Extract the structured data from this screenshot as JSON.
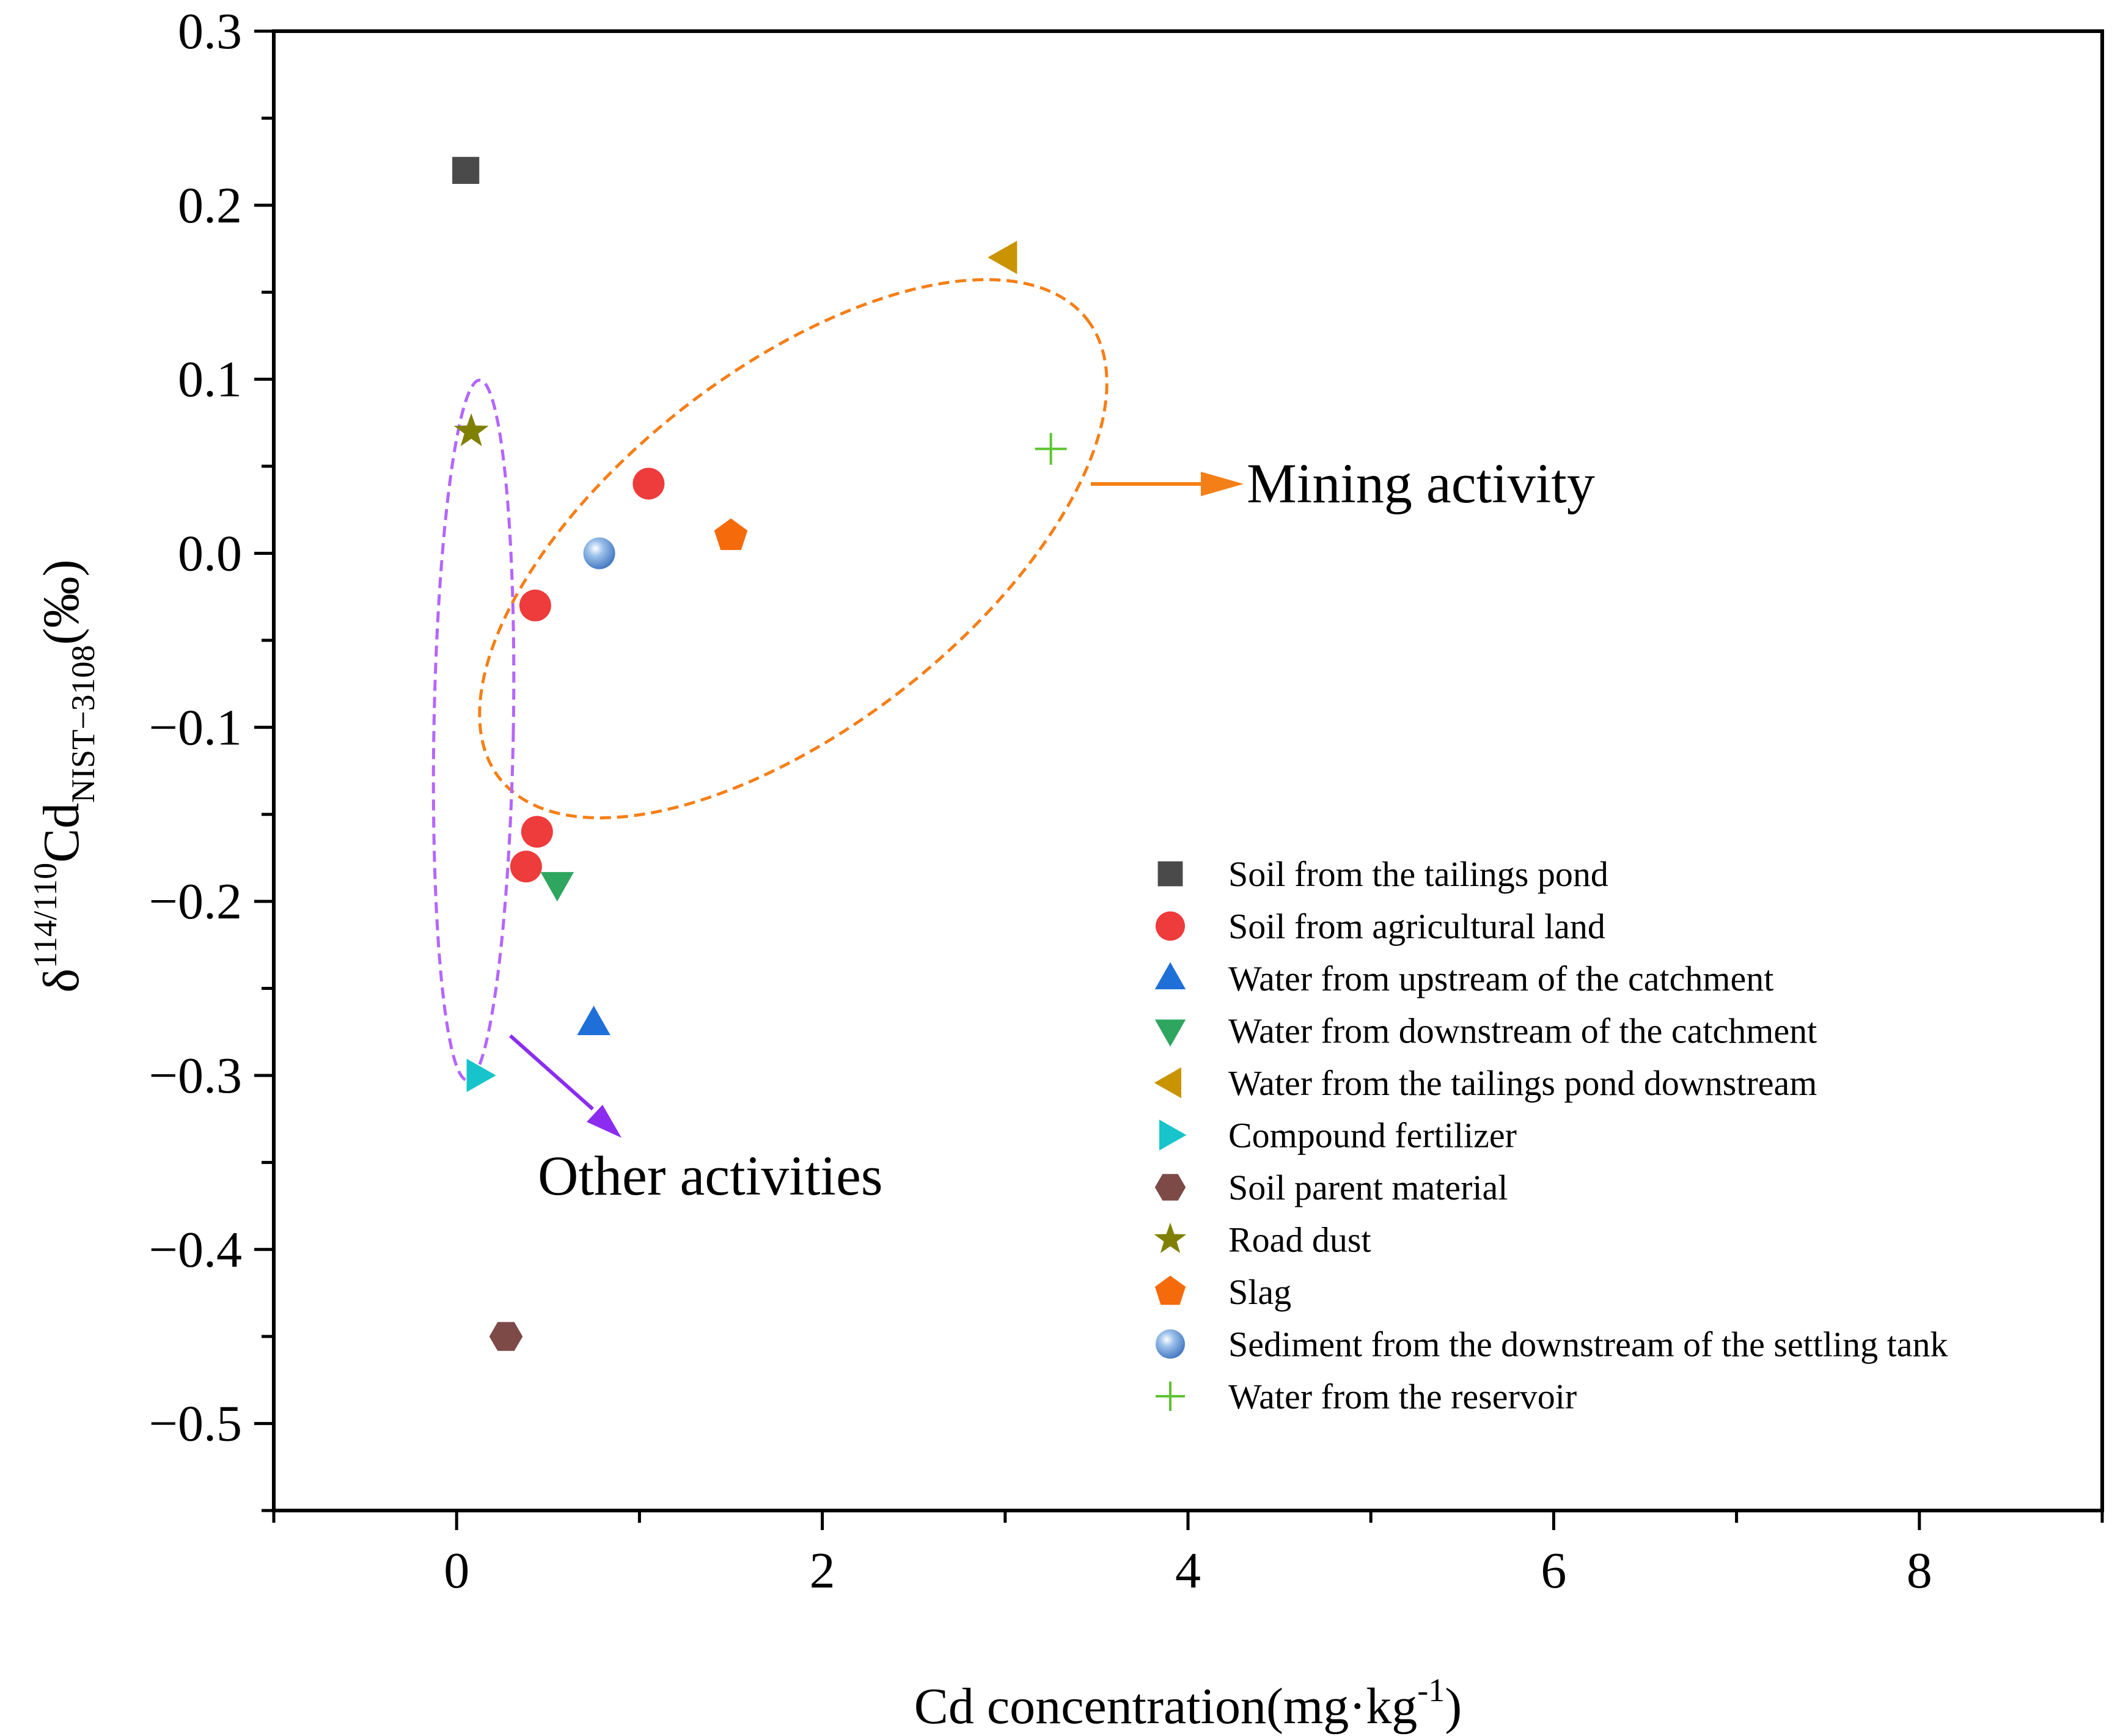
{
  "chart_data": {
    "type": "scatter",
    "title": "",
    "xlabel": {
      "prefix": "Cd concentration(mg·kg",
      "sup": "-1",
      "suffix": ")"
    },
    "ylabel": {
      "delta": "δ",
      "sup": "114/110",
      "element": "Cd",
      "sub": "NIST−3108",
      "suffix": "(‰)"
    },
    "xlim": [
      -1,
      9
    ],
    "ylim": [
      -0.55,
      0.3
    ],
    "x_ticks": [
      0,
      2,
      4,
      6,
      8
    ],
    "x_tick_labels": [
      "0",
      "2",
      "4",
      "6",
      "8"
    ],
    "y_ticks": [
      0.3,
      0.2,
      0.1,
      0.0,
      -0.1,
      -0.2,
      -0.3,
      -0.4,
      -0.5
    ],
    "y_tick_labels": [
      "0.3",
      "0.2",
      "0.1",
      "0.0",
      "−0.1",
      "−0.2",
      "−0.3",
      "−0.4",
      "−0.5"
    ],
    "grid": false,
    "legend_position": "right",
    "series": [
      {
        "name": "Soil from the tailings pond",
        "marker": "square",
        "color": "#4a4a4a",
        "points": [
          [
            0.05,
            0.22
          ]
        ]
      },
      {
        "name": "Soil from agricultural land",
        "marker": "circle",
        "color": "#ee3b3b",
        "points": [
          [
            1.05,
            0.04
          ],
          [
            0.43,
            -0.03
          ],
          [
            0.44,
            -0.16
          ],
          [
            0.38,
            -0.18
          ]
        ]
      },
      {
        "name": "Water from upstream of the catchment",
        "marker": "triangle-up",
        "color": "#1f6fd8",
        "points": [
          [
            0.75,
            -0.27
          ]
        ]
      },
      {
        "name": "Water from downstream of the catchment",
        "marker": "triangle-down",
        "color": "#2ea660",
        "points": [
          [
            0.55,
            -0.19
          ]
        ]
      },
      {
        "name": "Water from the tailings pond downstream",
        "marker": "triangle-left",
        "color": "#c99400",
        "points": [
          [
            3.0,
            0.17
          ]
        ]
      },
      {
        "name": "Compound fertilizer",
        "marker": "triangle-right",
        "color": "#17c4cc",
        "points": [
          [
            0.12,
            -0.3
          ]
        ]
      },
      {
        "name": "Soil parent material",
        "marker": "hexagon",
        "color": "#7d4a48",
        "points": [
          [
            0.27,
            -0.45
          ]
        ]
      },
      {
        "name": "Road dust",
        "marker": "star",
        "color": "#808000",
        "points": [
          [
            0.08,
            0.07
          ]
        ]
      },
      {
        "name": "Slag",
        "marker": "pentagon",
        "color": "#f56a0a",
        "points": [
          [
            1.5,
            0.01
          ]
        ]
      },
      {
        "name": "Sediment from the downstream of the settling tank",
        "marker": "sphere",
        "color": "#5b8fd6",
        "points": [
          [
            0.78,
            0.0
          ]
        ]
      },
      {
        "name": "Water from the reservoir",
        "marker": "plus",
        "color": "#5cc52e",
        "points": [
          [
            3.25,
            0.06
          ]
        ]
      }
    ],
    "annotations": [
      {
        "text": "Mining activity",
        "color": "#f57f17"
      },
      {
        "text": "Other activities",
        "color": "#8c2cf0"
      }
    ]
  }
}
